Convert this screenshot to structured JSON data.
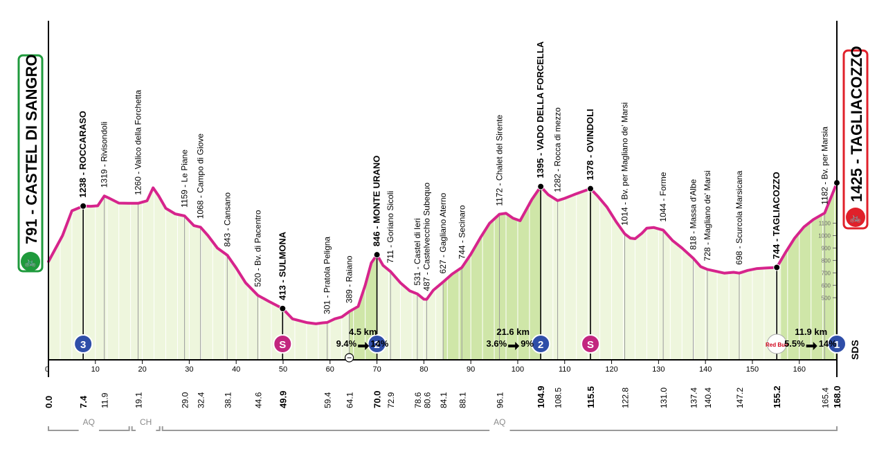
{
  "colors": {
    "profile_line": "#d6248c",
    "fill_light": "#eef6dd",
    "fill_dark": "#cfe6a8",
    "stripe": "#ffffff",
    "start_green": "#1f9a3c",
    "finish_red": "#e0202a",
    "climb_badge": "#2f4ea8",
    "sprint_badge": "#c2267f",
    "axis": "#000000",
    "muted": "#8a8a8a"
  },
  "start": {
    "label": "791 - CASTEL DI SANGRO",
    "icon": "cyclist-icon"
  },
  "finish": {
    "label": "1425 - TAGLIACOZZO",
    "icon": "cyclist-icon"
  },
  "sponsor_mark": "SDS",
  "chart_data": {
    "type": "area",
    "xlabel": "",
    "ylabel": "",
    "xlim": [
      0,
      168
    ],
    "ylim": [
      0,
      1450
    ],
    "x_ticks": [
      10,
      20,
      30,
      40,
      50,
      60,
      70,
      80,
      90,
      100,
      110,
      120,
      130,
      140,
      150,
      160
    ],
    "y_ticks": [
      "1100",
      "1000",
      "900",
      "800",
      "700",
      "600",
      "500"
    ],
    "profile": [
      [
        0,
        791
      ],
      [
        3,
        1000
      ],
      [
        5,
        1200
      ],
      [
        7.4,
        1238
      ],
      [
        9,
        1236
      ],
      [
        10.5,
        1240
      ],
      [
        11.9,
        1319
      ],
      [
        13,
        1300
      ],
      [
        15,
        1262
      ],
      [
        17,
        1260
      ],
      [
        19.1,
        1260
      ],
      [
        21,
        1280
      ],
      [
        22.3,
        1385
      ],
      [
        23.5,
        1320
      ],
      [
        25,
        1220
      ],
      [
        27,
        1175
      ],
      [
        29,
        1159
      ],
      [
        31,
        1080
      ],
      [
        32.4,
        1068
      ],
      [
        34,
        1000
      ],
      [
        36,
        900
      ],
      [
        38.1,
        843
      ],
      [
        40,
        740
      ],
      [
        42,
        620
      ],
      [
        44.6,
        520
      ],
      [
        47,
        470
      ],
      [
        49.9,
        413
      ],
      [
        52,
        330
      ],
      [
        55,
        300
      ],
      [
        57,
        290
      ],
      [
        58.5,
        298
      ],
      [
        59.4,
        301
      ],
      [
        61,
        330
      ],
      [
        62.5,
        345
      ],
      [
        64.1,
        389
      ],
      [
        66,
        430
      ],
      [
        67.5,
        600
      ],
      [
        68.8,
        780
      ],
      [
        70,
        846
      ],
      [
        71.3,
        760
      ],
      [
        72.9,
        711
      ],
      [
        75,
        620
      ],
      [
        77,
        555
      ],
      [
        78.6,
        531
      ],
      [
        80,
        488
      ],
      [
        80.6,
        487
      ],
      [
        82,
        560
      ],
      [
        84.1,
        627
      ],
      [
        86,
        690
      ],
      [
        88.1,
        744
      ],
      [
        90,
        850
      ],
      [
        92,
        980
      ],
      [
        94,
        1100
      ],
      [
        96.1,
        1172
      ],
      [
        97.5,
        1180
      ],
      [
        99,
        1140
      ],
      [
        100.5,
        1120
      ],
      [
        103,
        1290
      ],
      [
        104.9,
        1395
      ],
      [
        106.5,
        1330
      ],
      [
        108.5,
        1282
      ],
      [
        110,
        1300
      ],
      [
        112,
        1330
      ],
      [
        115.5,
        1378
      ],
      [
        117,
        1320
      ],
      [
        119,
        1230
      ],
      [
        121,
        1110
      ],
      [
        122.8,
        1014
      ],
      [
        124,
        980
      ],
      [
        125,
        975
      ],
      [
        126.5,
        1020
      ],
      [
        127.5,
        1060
      ],
      [
        129,
        1065
      ],
      [
        131,
        1044
      ],
      [
        133,
        960
      ],
      [
        135,
        900
      ],
      [
        137.4,
        818
      ],
      [
        139,
        750
      ],
      [
        140.4,
        728
      ],
      [
        142,
        715
      ],
      [
        144,
        698
      ],
      [
        146,
        705
      ],
      [
        147.2,
        698
      ],
      [
        149,
        720
      ],
      [
        151,
        735
      ],
      [
        153,
        740
      ],
      [
        155.2,
        744
      ],
      [
        157,
        860
      ],
      [
        159,
        980
      ],
      [
        161,
        1070
      ],
      [
        163,
        1130
      ],
      [
        165.4,
        1182
      ],
      [
        167,
        1330
      ],
      [
        168,
        1425
      ]
    ],
    "km_markers": [
      "0.0",
      "7.4",
      "11.9",
      "19.1",
      "29.0",
      "32.4",
      "38.1",
      "44.6",
      "49.9",
      "59.4",
      "64.1",
      "70.0",
      "72.9",
      "78.6",
      "80.6",
      "84.1",
      "88.1",
      "96.1",
      "104.9",
      "108.5",
      "115.5",
      "122.8",
      "131.0",
      "137.4",
      "140.4",
      "147.2",
      "155.2",
      "165.4",
      "168.0"
    ],
    "waypoints": [
      {
        "km": 7.4,
        "alt": 1238,
        "label": "1238 - ROCCARASO",
        "bold": true
      },
      {
        "km": 11.9,
        "alt": 1319,
        "label": "1319 - Rivisondoli",
        "bold": false
      },
      {
        "km": 19.1,
        "alt": 1260,
        "label": "1260 - Valico della Forchetta",
        "bold": false
      },
      {
        "km": 29.0,
        "alt": 1159,
        "label": "1159 - Le Piane",
        "bold": false
      },
      {
        "km": 32.4,
        "alt": 1068,
        "label": "1068 - Campo di Giove",
        "bold": false
      },
      {
        "km": 38.1,
        "alt": 843,
        "label": "843 - Cansano",
        "bold": false
      },
      {
        "km": 44.6,
        "alt": 520,
        "label": "520 - Bv. di Pacentro",
        "bold": false
      },
      {
        "km": 49.9,
        "alt": 413,
        "label": "413 - SULMONA",
        "bold": true
      },
      {
        "km": 59.4,
        "alt": 301,
        "label": "301 - Pratola Peligna",
        "bold": false
      },
      {
        "km": 64.1,
        "alt": 389,
        "label": "389 - Raiano",
        "bold": false
      },
      {
        "km": 70.0,
        "alt": 846,
        "label": "846 - MONTE URANO",
        "bold": true
      },
      {
        "km": 72.9,
        "alt": 711,
        "label": "711 - Goriano Sicoli",
        "bold": false
      },
      {
        "km": 78.6,
        "alt": 531,
        "label": "531 - Castel di Ieri",
        "bold": false
      },
      {
        "km": 80.6,
        "alt": 487,
        "label": "487 - Castelvecchio Subequo",
        "bold": false
      },
      {
        "km": 84.1,
        "alt": 627,
        "label": "627 - Gagliano Aterno",
        "bold": false
      },
      {
        "km": 88.1,
        "alt": 744,
        "label": "744 - Secinaro",
        "bold": false
      },
      {
        "km": 96.1,
        "alt": 1172,
        "label": "1172 - Chalet del Sirente",
        "bold": false
      },
      {
        "km": 104.9,
        "alt": 1395,
        "label": "1395 - VADO DELLA FORCELLA",
        "bold": true
      },
      {
        "km": 108.5,
        "alt": 1282,
        "label": "1282 - Rocca di mezzo",
        "bold": false
      },
      {
        "km": 115.5,
        "alt": 1378,
        "label": "1378 - OVINDOLI",
        "bold": true
      },
      {
        "km": 122.8,
        "alt": 1014,
        "label": "1014 - Bv. per Magliano de' Marsi",
        "bold": false
      },
      {
        "km": 131.0,
        "alt": 1044,
        "label": "1044 - Forme",
        "bold": false
      },
      {
        "km": 137.4,
        "alt": 818,
        "label": "818 - Massa d'Albe",
        "bold": false
      },
      {
        "km": 140.4,
        "alt": 728,
        "label": "728 - Magliano de' Marsi",
        "bold": false
      },
      {
        "km": 147.2,
        "alt": 698,
        "label": "698 - Scurcola Marsicana",
        "bold": false
      },
      {
        "km": 155.2,
        "alt": 744,
        "label": "744 - TAGLIACOZZO",
        "bold": true
      },
      {
        "km": 165.4,
        "alt": 1182,
        "label": "1182 - Bv. per Marsia",
        "bold": false
      }
    ],
    "climb_sections": [
      [
        64.1,
        70.0
      ],
      [
        84.1,
        104.9
      ],
      [
        156.1,
        168.0
      ]
    ],
    "climbs": [
      {
        "km": 7.4,
        "category": "3",
        "kind": "climb"
      },
      {
        "km": 49.9,
        "category": "S",
        "kind": "sprint"
      },
      {
        "km": 70.0,
        "category": "2",
        "kind": "climb"
      },
      {
        "km": 104.9,
        "category": "2",
        "kind": "climb"
      },
      {
        "km": 115.5,
        "category": "S",
        "kind": "sprint"
      },
      {
        "km": 155.2,
        "category": "Red Bull",
        "kind": "sponsor"
      },
      {
        "km": 168.0,
        "category": "1",
        "kind": "climb"
      }
    ],
    "climb_info": [
      {
        "km": 67.0,
        "length": "4.5 km",
        "avg": "9.4%",
        "max": "14%"
      },
      {
        "km": 99.0,
        "length": "21.6 km",
        "avg": "3.6%",
        "max": "9%"
      },
      {
        "km": 162.5,
        "length": "11.9 km",
        "avg": "5.5%",
        "max": "14%"
      }
    ],
    "feed_zone_km": 64.1,
    "regions": [
      {
        "label": "AQ",
        "from": 0,
        "to": 17.5
      },
      {
        "label": "CH",
        "from": 17.5,
        "to": 24
      },
      {
        "label": "AQ",
        "from": 24,
        "to": 168
      }
    ]
  }
}
